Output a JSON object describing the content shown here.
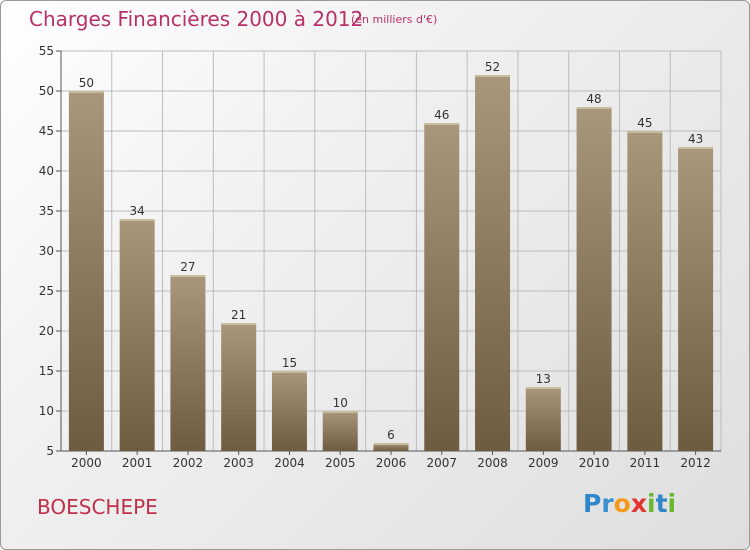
{
  "header": {
    "title": "Charges Financières 2000 à 2012",
    "subtitle": "(en milliers d'€)"
  },
  "footer": {
    "place": "BOESCHEPE",
    "logo": [
      "P",
      "r",
      "o",
      "x",
      "i",
      "t",
      "i"
    ]
  },
  "colors": {
    "title": "#b8306a",
    "bar_light": "#a8977a",
    "bar_dark": "#6e5c40",
    "grid": "#bdbdbd"
  },
  "chart_data": {
    "type": "bar",
    "title": "Charges Financières 2000 à 2012",
    "subtitle": "(en milliers d'€)",
    "categories": [
      "2000",
      "2001",
      "2002",
      "2003",
      "2004",
      "2005",
      "2006",
      "2007",
      "2008",
      "2009",
      "2010",
      "2011",
      "2012"
    ],
    "values": [
      50,
      34,
      27,
      21,
      15,
      10,
      6,
      46,
      52,
      13,
      48,
      45,
      43
    ],
    "ylim": [
      5,
      55
    ],
    "yticks": [
      5,
      10,
      15,
      20,
      25,
      30,
      35,
      40,
      45,
      50,
      55
    ],
    "grid": true,
    "data_labels": true
  }
}
